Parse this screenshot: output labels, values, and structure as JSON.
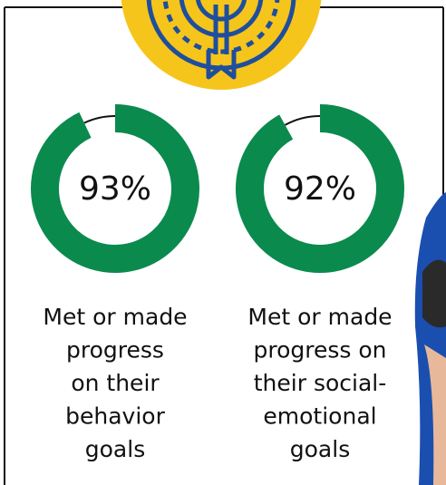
{
  "chart_data": [
    {
      "type": "donut",
      "values": [
        93
      ],
      "value_labels": [
        "93%"
      ],
      "color": "#0b8a4e",
      "caption": [
        "Met or made",
        "progress",
        "on their",
        "behavior",
        "goals"
      ]
    },
    {
      "type": "donut",
      "values": [
        92
      ],
      "value_labels": [
        "92%"
      ],
      "color": "#0b8a4e",
      "caption": [
        "Met or made",
        "progress on",
        "their social-",
        "emotional",
        "goals"
      ]
    }
  ]
}
